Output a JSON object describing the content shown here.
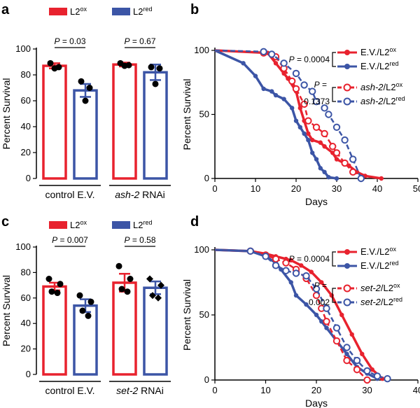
{
  "colors": {
    "red": "#e8222e",
    "blue": "#3c55a6",
    "axis": "#000000"
  },
  "chart_data": [
    {
      "panel": "a",
      "type": "bar",
      "ylabel": "Percent Survival",
      "ylim": [
        0,
        100
      ],
      "yticks": [
        "0",
        "20",
        "40",
        "60",
        "80",
        "100"
      ],
      "legend": [
        {
          "base": "L2",
          "sup": "ox",
          "color": "#e8222e"
        },
        {
          "base": "L2",
          "sup": "red",
          "color": "#3c55a6"
        }
      ],
      "groups": [
        {
          "label": "control E.V.",
          "label_italic": "",
          "p_text": "P",
          "p_value": " = 0.03",
          "bars": [
            {
              "series": "L2ox",
              "value": 87,
              "error": 2,
              "color": "#e8222e",
              "marker": "circle",
              "points": [
                89,
                86,
                85
              ]
            },
            {
              "series": "L2red",
              "value": 68,
              "error": 5,
              "color": "#3c55a6",
              "marker": "circle",
              "points": [
                75,
                70,
                60
              ]
            }
          ]
        },
        {
          "label": " RNAi",
          "label_italic": "ash-2",
          "p_text": "P",
          "p_value": " = 0.67",
          "bars": [
            {
              "series": "L2ox",
              "value": 88,
              "error": 1.5,
              "color": "#e8222e",
              "marker": "circle",
              "points": [
                89,
                87.5,
                87
              ]
            },
            {
              "series": "L2red",
              "value": 82,
              "error": 6,
              "color": "#3c55a6",
              "marker": "circle",
              "points": [
                86,
                85,
                73
              ]
            }
          ]
        }
      ]
    },
    {
      "panel": "b",
      "type": "line",
      "xlabel": "Days",
      "ylabel": "Percent Survival",
      "xlim": [
        0,
        50
      ],
      "ylim": [
        0,
        100
      ],
      "xticks": [
        "0",
        "10",
        "20",
        "30",
        "40",
        "50"
      ],
      "yticks": [
        "0",
        "50",
        "100"
      ],
      "stats": [
        {
          "p_text": "P",
          "p_value": " = 0.0004"
        },
        {
          "p_text": "P =",
          "p_value": "0.1373"
        }
      ],
      "series": [
        {
          "name_italic": "",
          "name": "E.V./L2",
          "sup": "ox",
          "color": "#e8222e",
          "dashed": false,
          "marker": "filled",
          "x": [
            0,
            13,
            15,
            17,
            18,
            20,
            21,
            22,
            23,
            24,
            26,
            27,
            29,
            30,
            33,
            35,
            37,
            41
          ],
          "y": [
            100,
            98,
            90,
            82,
            78,
            68,
            55,
            45,
            35,
            30,
            28,
            25,
            20,
            15,
            10,
            5,
            2,
            0
          ]
        },
        {
          "name_italic": "",
          "name": "E.V./L2",
          "sup": "red",
          "color": "#3c55a6",
          "dashed": false,
          "marker": "filled",
          "x": [
            0,
            7,
            10,
            12,
            14,
            15,
            17,
            19,
            20,
            21,
            22,
            23,
            24,
            25,
            26,
            27,
            28,
            30
          ],
          "y": [
            100,
            90,
            80,
            70,
            68,
            65,
            62,
            55,
            45,
            40,
            35,
            30,
            20,
            15,
            8,
            5,
            1,
            0
          ]
        },
        {
          "name_italic": "ash-2",
          "name": "/L2",
          "sup": "ox",
          "color": "#e8222e",
          "dashed": true,
          "marker": "open",
          "x": [
            0,
            12,
            15,
            17,
            19,
            20,
            22,
            23,
            25,
            27,
            29,
            30,
            32,
            34
          ],
          "y": [
            100,
            98,
            95,
            86,
            76,
            70,
            58,
            45,
            40,
            35,
            25,
            20,
            12,
            5
          ]
        },
        {
          "name_italic": "ash-2",
          "name": "/L2",
          "sup": "red",
          "color": "#3c55a6",
          "dashed": true,
          "marker": "open",
          "x": [
            0,
            12,
            14,
            17,
            20,
            22,
            24,
            25,
            27,
            28,
            30,
            32,
            34,
            36
          ],
          "y": [
            100,
            99,
            97,
            90,
            82,
            73,
            68,
            60,
            55,
            50,
            40,
            30,
            15,
            0
          ]
        }
      ]
    },
    {
      "panel": "c",
      "type": "bar",
      "ylabel": "Percent Survival",
      "ylim": [
        0,
        100
      ],
      "yticks": [
        "0",
        "20",
        "40",
        "60",
        "80",
        "100"
      ],
      "legend": [
        {
          "base": "L2",
          "sup": "ox",
          "color": "#e8222e"
        },
        {
          "base": "L2",
          "sup": "red",
          "color": "#3c55a6"
        }
      ],
      "groups": [
        {
          "label": "control E.V.",
          "label_italic": "",
          "p_text": "P",
          "p_value": " = 0.007",
          "bars": [
            {
              "series": "L2ox",
              "value": 69,
              "error": 3,
              "color": "#e8222e",
              "marker": "circle",
              "points": [
                75,
                71,
                65,
                64
              ]
            },
            {
              "series": "L2red",
              "value": 54,
              "error": 5,
              "color": "#3c55a6",
              "marker": "circle",
              "points": [
                62,
                57,
                50,
                46
              ]
            }
          ]
        },
        {
          "label": " RNAi",
          "label_italic": "set-2",
          "p_text": "P",
          "p_value": " = 0.58",
          "bars": [
            {
              "series": "L2ox",
              "value": 72,
              "error": 7,
              "color": "#e8222e",
              "marker": "circle",
              "points": [
                85,
                75,
                67,
                65
              ]
            },
            {
              "series": "L2red",
              "value": 68,
              "error": 5,
              "color": "#3c55a6",
              "marker": "diamond",
              "points": [
                75,
                70,
                62,
                60
              ]
            }
          ]
        }
      ]
    },
    {
      "panel": "d",
      "type": "line",
      "xlabel": "Days",
      "ylabel": "Percent Survival",
      "xlim": [
        0,
        40
      ],
      "ylim": [
        0,
        100
      ],
      "xticks": [
        "0",
        "10",
        "20",
        "30",
        "40"
      ],
      "yticks": [
        "0",
        "50",
        "100"
      ],
      "stats": [
        {
          "p_text": "P",
          "p_value": " = 0.0004"
        },
        {
          "p_text": "P =",
          "p_value": "0.002"
        }
      ],
      "series": [
        {
          "name_italic": "",
          "name": "E.V./L2",
          "sup": "ox",
          "color": "#e8222e",
          "dashed": false,
          "marker": "filled",
          "x": [
            0,
            7,
            10,
            12,
            14,
            15,
            17,
            19,
            21,
            23,
            25,
            27,
            29,
            31,
            33
          ],
          "y": [
            100,
            99,
            97,
            95,
            93,
            92,
            88,
            83,
            75,
            65,
            50,
            35,
            20,
            8,
            1
          ]
        },
        {
          "name_italic": "",
          "name": "E.V./L2",
          "sup": "red",
          "color": "#3c55a6",
          "dashed": false,
          "marker": "filled",
          "x": [
            0,
            7,
            10,
            12,
            13,
            15,
            16,
            18,
            20,
            21,
            22,
            24,
            26,
            28,
            30,
            32
          ],
          "y": [
            100,
            99,
            95,
            90,
            85,
            75,
            65,
            58,
            50,
            45,
            40,
            30,
            20,
            10,
            5,
            1
          ]
        },
        {
          "name_italic": "set-2",
          "name": "/L2",
          "sup": "ox",
          "color": "#e8222e",
          "dashed": true,
          "marker": "open",
          "x": [
            0,
            7,
            10,
            12,
            14,
            16,
            18,
            20,
            21,
            22,
            24,
            26,
            28,
            30
          ],
          "y": [
            100,
            99,
            96,
            93,
            90,
            85,
            78,
            65,
            55,
            45,
            30,
            15,
            8,
            0
          ]
        },
        {
          "name_italic": "set-2",
          "name": "/L2",
          "sup": "red",
          "color": "#3c55a6",
          "dashed": true,
          "marker": "open",
          "x": [
            0,
            7,
            10,
            12,
            14,
            16,
            18,
            20,
            22,
            24,
            26,
            28,
            30,
            32,
            34
          ],
          "y": [
            100,
            99,
            95,
            88,
            84,
            82,
            80,
            70,
            55,
            40,
            25,
            15,
            7,
            3,
            1
          ]
        }
      ]
    }
  ]
}
